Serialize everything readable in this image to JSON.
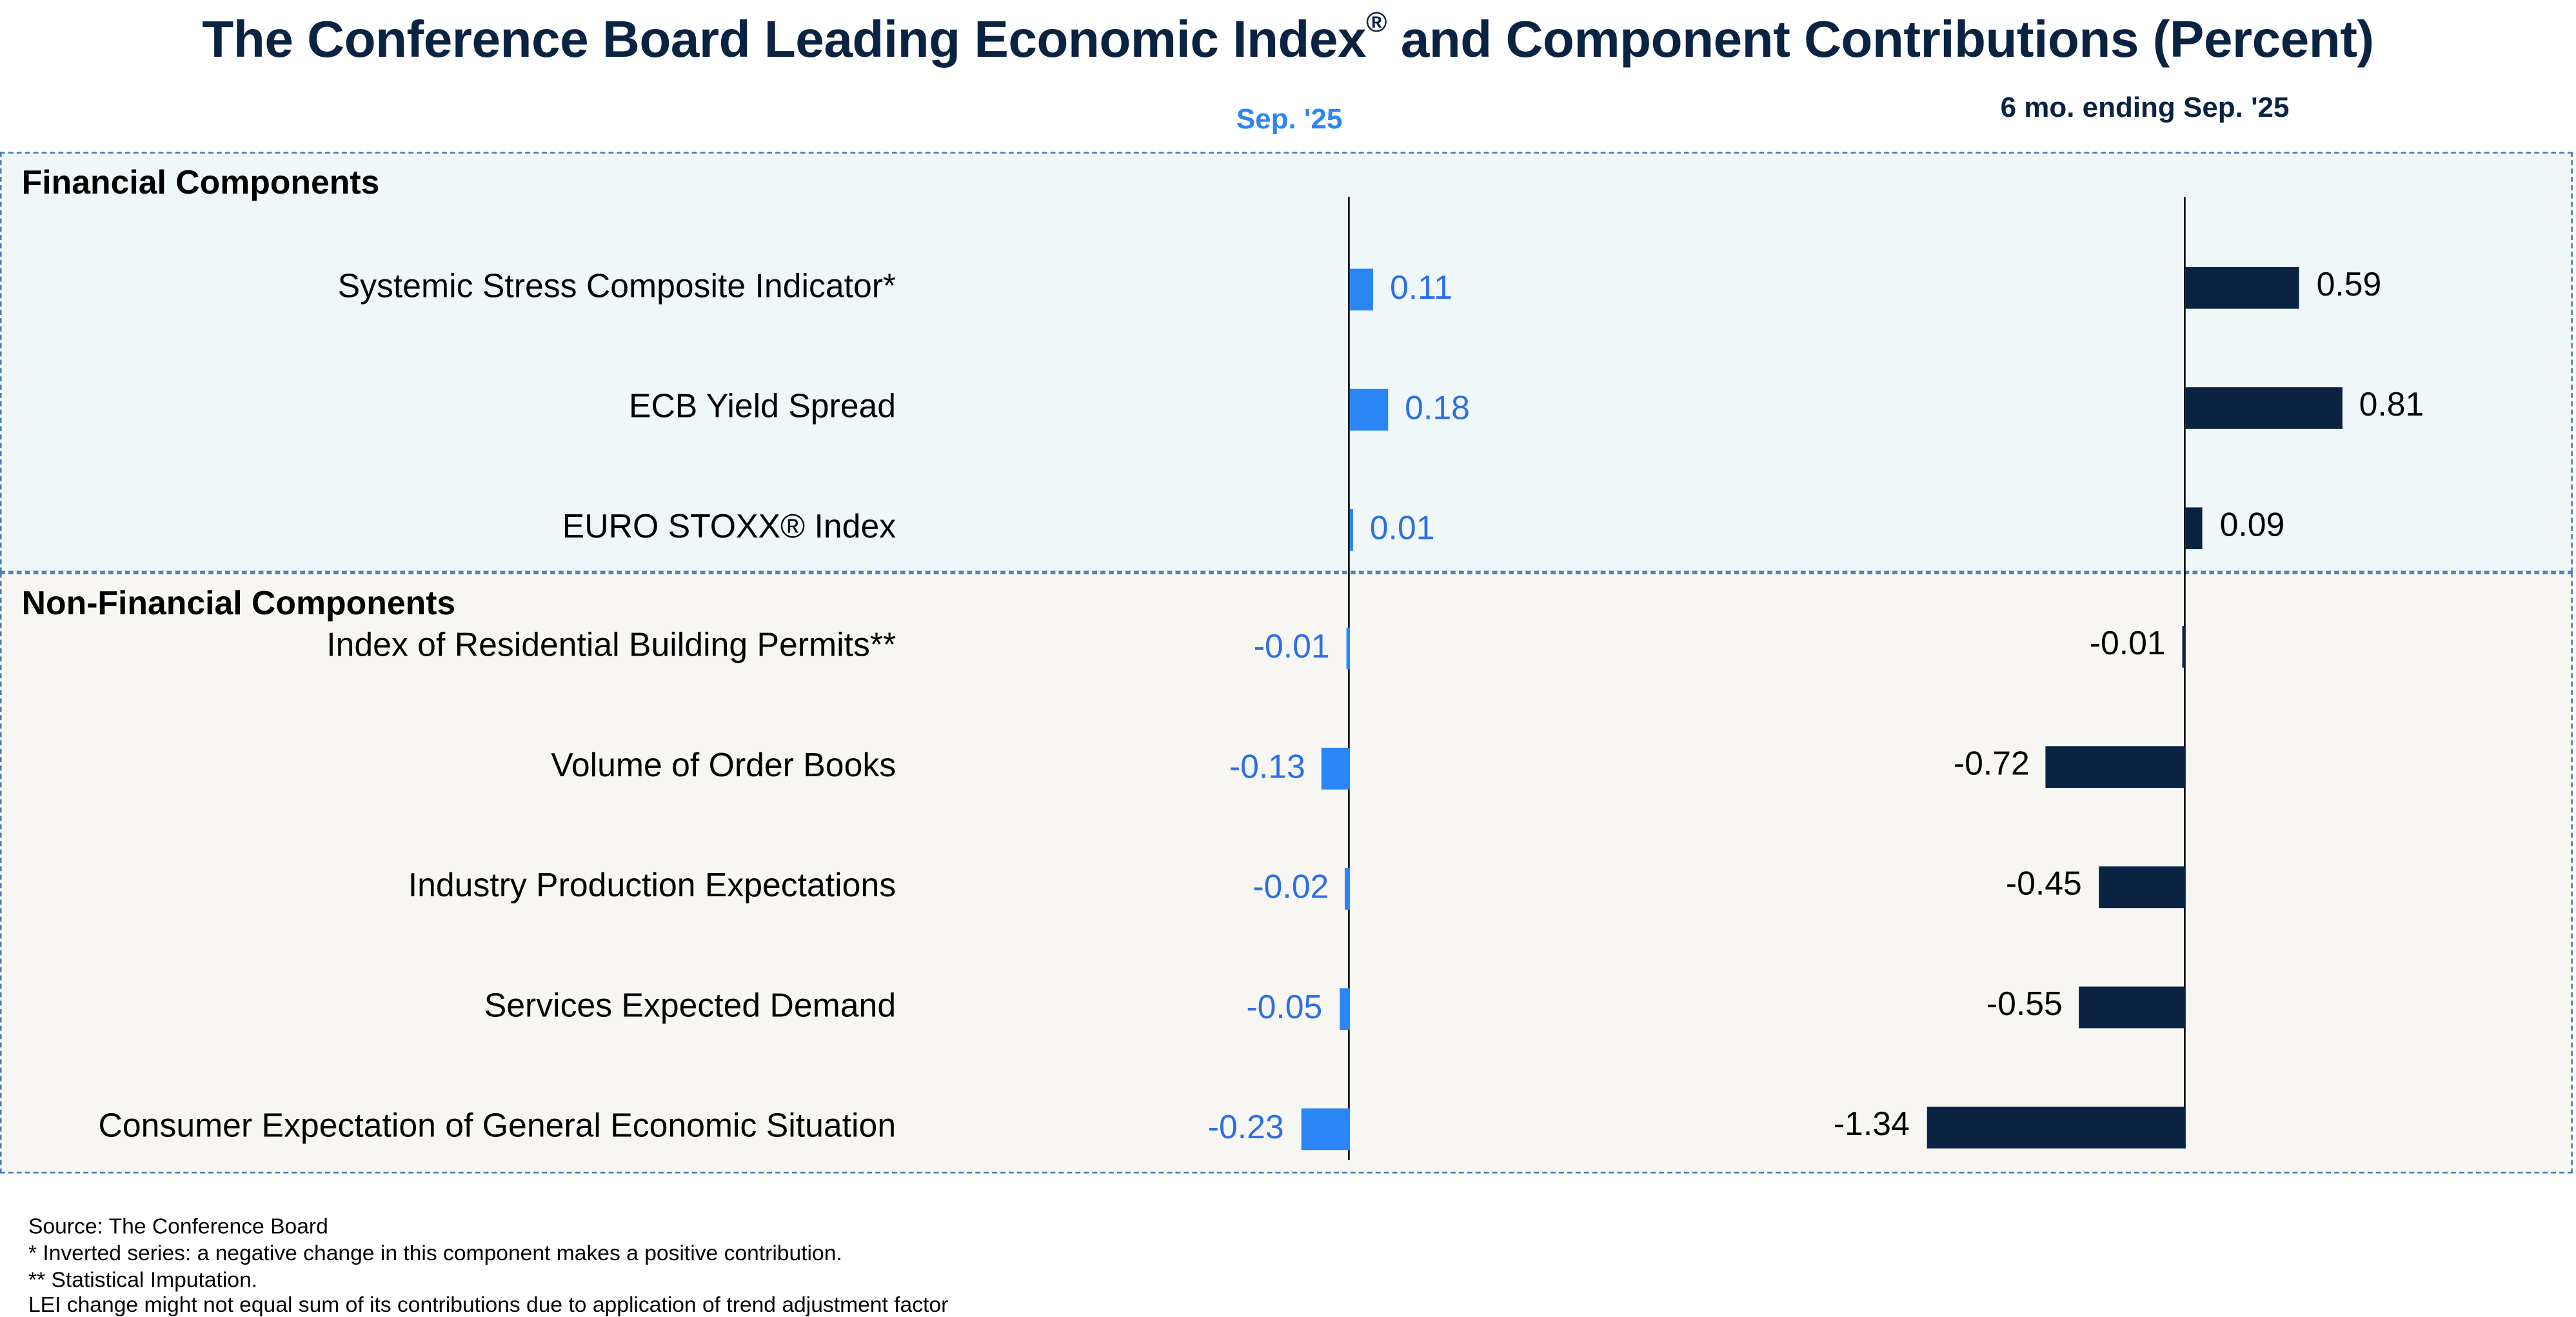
{
  "title_main": "The Conference Board Leading Economic Index",
  "title_reg": "®",
  "title_rest": " and Component Contributions (Percent)",
  "colors": {
    "sep_bar": "#2a85f5",
    "sep_text": "#2a6fe8",
    "six_mo_bar": "#0a2342",
    "title": "#0a2342"
  },
  "sections": [
    {
      "title": "Financial Components"
    },
    {
      "title": "Non-Financial Components"
    }
  ],
  "footer": [
    "Source: The Conference Board",
    "* Inverted series: a negative change in this component makes a positive contribution.",
    "**  Statistical Imputation.",
    "LEI change might not equal sum of its contributions due to application of trend adjustment factor"
  ],
  "chart_data": {
    "type": "bar",
    "orientation": "horizontal",
    "title": "The Conference Board Leading Economic Index® and Component Contributions (Percent)",
    "categories": [
      "Systemic Stress Composite Indicator*",
      "ECB Yield Spread",
      "EURO STOXX® Index",
      "Index of Residential Building Permits**",
      "Volume of Order Books",
      "Industry Production Expectations",
      "Services Expected Demand",
      "Consumer Expectation of General Economic Situation"
    ],
    "groups": [
      "Financial Components",
      "Financial Components",
      "Financial Components",
      "Non-Financial Components",
      "Non-Financial Components",
      "Non-Financial Components",
      "Non-Financial Components",
      "Non-Financial Components"
    ],
    "series": [
      {
        "name": "Sep. '25",
        "values": [
          0.11,
          0.18,
          0.01,
          -0.01,
          -0.13,
          -0.02,
          -0.05,
          -0.23
        ]
      },
      {
        "name": "6 mo. ending Sep. '25",
        "values": [
          0.59,
          0.81,
          0.09,
          -0.01,
          -0.72,
          -0.45,
          -0.55,
          -1.34
        ]
      }
    ],
    "labels": {
      "sep": [
        "0.11",
        "0.18",
        "0.01",
        "-0.01",
        "-0.13",
        "-0.02",
        "-0.05",
        "-0.23"
      ],
      "six_mo": [
        "0.59",
        "0.81",
        "0.09",
        "-0.01",
        "-0.72",
        "-0.45",
        "-0.55",
        "-1.34"
      ]
    },
    "xlabel": "",
    "ylabel": "",
    "grid": false,
    "legend": "none"
  }
}
